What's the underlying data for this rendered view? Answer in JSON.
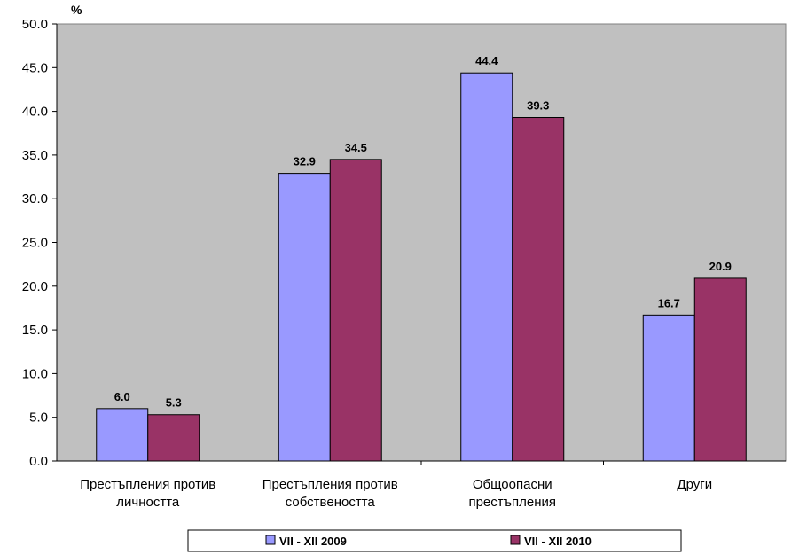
{
  "chart_data": {
    "type": "bar",
    "unit_label": "%",
    "categories": [
      [
        "Престъпления против",
        "личността"
      ],
      [
        "Престъпления против",
        "собствеността"
      ],
      [
        "Общоопасни",
        "престъпления"
      ],
      [
        "Други"
      ]
    ],
    "series": [
      {
        "name": "VII - XII 2009",
        "values": [
          6.0,
          32.9,
          44.4,
          16.7
        ],
        "color": "#9999ff"
      },
      {
        "name": "VII - XII 2010",
        "values": [
          5.3,
          34.5,
          39.3,
          20.9
        ],
        "color": "#993366"
      }
    ],
    "ylim": [
      0,
      50
    ],
    "yticks": [
      "0.0",
      "5.0",
      "10.0",
      "15.0",
      "20.0",
      "25.0",
      "30.0",
      "35.0",
      "40.0",
      "45.0",
      "50.0"
    ],
    "grid": false,
    "plot_background": "#c0c0c0",
    "legend_position": "bottom"
  }
}
